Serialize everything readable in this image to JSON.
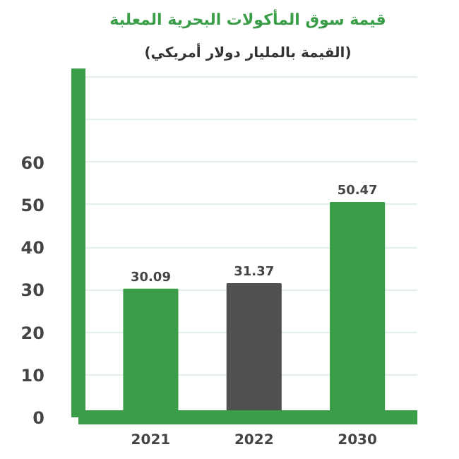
{
  "chart_data": {
    "type": "bar",
    "title": "قيمة سوق المأكولات البحرية المعلبة",
    "subtitle": "(القيمة بالمليار دولار أمريكي)",
    "categories": [
      "2021",
      "2022",
      "2030"
    ],
    "values": [
      30.09,
      31.37,
      50.47
    ],
    "colors": [
      "#3a9e48",
      "#505050",
      "#3a9e48"
    ],
    "data_labels": true,
    "ylim": [
      0,
      82
    ],
    "yticks": [
      0,
      10,
      20,
      30,
      40,
      50,
      60,
      {
        "value": 70,
        "label": null
      },
      {
        "value": 80,
        "label": null
      }
    ],
    "grid": "y"
  }
}
